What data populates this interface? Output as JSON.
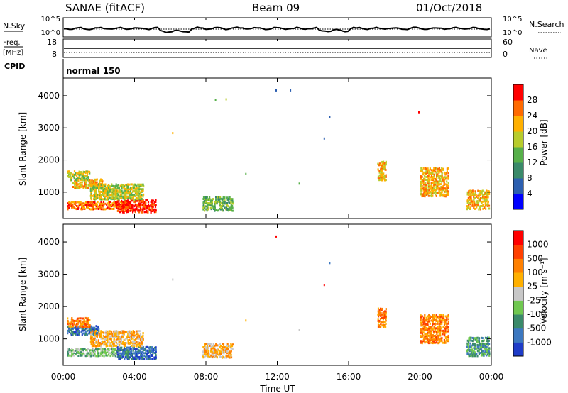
{
  "header": {
    "station": "SANAE (fitACF)",
    "beam": "Beam 09",
    "date": "01/Oct/2018"
  },
  "params": {
    "nsky_label": "N.Sky",
    "nsky_ticks": [
      "10^5",
      "10^0"
    ],
    "nsearch_label": "N.Search",
    "nsearch_ticks": [
      "10^5",
      "10^0"
    ],
    "freq_label_1": "Freq.",
    "freq_label_2": "[MHz]",
    "freq_ticks": [
      "18",
      "8"
    ],
    "nave_label": "Nave",
    "nave_ticks": [
      "60",
      "0"
    ],
    "cpid_label": "CPID",
    "cpid_value": "normal 150"
  },
  "colors": {
    "power": [
      "#0000ff",
      "#2c5fb0",
      "#3a8a6a",
      "#57b04a",
      "#b8cc2c",
      "#ffb000",
      "#ff6a00",
      "#ff0000"
    ],
    "velocity": [
      "#1e3cc8",
      "#3c78c0",
      "#3a8a6a",
      "#70c850",
      "#c8c8c8",
      "#ffb000",
      "#ff8000",
      "#ff4000",
      "#ff0000"
    ]
  },
  "chart_data": [
    {
      "type": "heatmap",
      "panel": "power",
      "ylabel": "Slant Range [km]",
      "yticks": [
        "4000",
        "3000",
        "2000",
        "1000"
      ],
      "ylim": [
        180,
        4550
      ],
      "xlim": [
        0,
        24
      ],
      "colorbar_label": "Power [dB]",
      "colorbar_ticks": [
        "28",
        "24",
        "20",
        "16",
        "12",
        "8",
        "4"
      ],
      "clusters": [
        {
          "t0": 0.5,
          "t1": 2.2,
          "r0": 1150,
          "r1": 1450,
          "center": [
            1.3,
            1300
          ],
          "level": 5
        },
        {
          "t0": 0.2,
          "t1": 3.8,
          "r0": 500,
          "r1": 750,
          "center": [
            2.5,
            600
          ],
          "level": 6
        },
        {
          "t0": 3.0,
          "t1": 5.2,
          "r0": 400,
          "r1": 800,
          "center": [
            4.3,
            560
          ],
          "level": 7
        },
        {
          "t0": 1.5,
          "t1": 4.5,
          "r0": 800,
          "r1": 1300,
          "center": [
            3.0,
            950
          ],
          "level": 4
        },
        {
          "t0": 0.2,
          "t1": 1.5,
          "r0": 1400,
          "r1": 1700,
          "center": [
            0.6,
            1550
          ],
          "level": 4
        },
        {
          "t0": 17.6,
          "t1": 18.1,
          "r0": 1400,
          "r1": 2000,
          "center": [
            17.9,
            1700
          ],
          "level": 5
        },
        {
          "t0": 20.0,
          "t1": 21.6,
          "r0": 900,
          "r1": 1800,
          "center": [
            20.8,
            1400
          ],
          "level": 5
        },
        {
          "t0": 22.6,
          "t1": 23.9,
          "r0": 500,
          "r1": 1100,
          "center": [
            23.3,
            700
          ],
          "level": 5
        },
        {
          "t0": 7.8,
          "t1": 9.5,
          "r0": 450,
          "r1": 900,
          "center": [
            8.6,
            600
          ],
          "level": 3
        }
      ],
      "points": [
        {
          "t": 8.5,
          "r": 3900,
          "level": 3
        },
        {
          "t": 9.1,
          "r": 3920,
          "level": 4
        },
        {
          "t": 11.9,
          "r": 4200,
          "level": 1
        },
        {
          "t": 12.7,
          "r": 4200,
          "level": 1
        },
        {
          "t": 14.9,
          "r": 3380,
          "level": 1
        },
        {
          "t": 14.6,
          "r": 2700,
          "level": 1
        },
        {
          "t": 19.9,
          "r": 3520,
          "level": 7
        },
        {
          "t": 6.1,
          "r": 2870,
          "level": 5
        },
        {
          "t": 10.2,
          "r": 1600,
          "level": 3
        },
        {
          "t": 13.2,
          "r": 1300,
          "level": 3
        }
      ]
    },
    {
      "type": "heatmap",
      "panel": "velocity",
      "ylabel": "Slant Range [km]",
      "yticks": [
        "4000",
        "3000",
        "2000",
        "1000"
      ],
      "ylim": [
        180,
        4550
      ],
      "xlim": [
        0,
        24
      ],
      "xticks": [
        "00:00",
        "04:00",
        "08:00",
        "12:00",
        "16:00",
        "20:00",
        "00:00"
      ],
      "xlabel": "Time UT",
      "colorbar_label": "Velocity [m s⁻¹]",
      "colorbar_ticks": [
        "1000",
        "500",
        "100",
        "25",
        "-25",
        "-100",
        "-500",
        "-1000"
      ],
      "clusters": [
        {
          "t0": 0.2,
          "t1": 2.0,
          "r0": 1150,
          "r1": 1450,
          "center": [
            1.0,
            1300
          ],
          "level": 1
        },
        {
          "t0": 0.2,
          "t1": 3.8,
          "r0": 500,
          "r1": 750,
          "center": [
            2.5,
            600
          ],
          "level": 3
        },
        {
          "t0": 3.0,
          "t1": 5.2,
          "r0": 400,
          "r1": 800,
          "center": [
            4.3,
            560
          ],
          "level": 1
        },
        {
          "t0": 1.5,
          "t1": 4.5,
          "r0": 800,
          "r1": 1300,
          "center": [
            3.0,
            950
          ],
          "level": 5
        },
        {
          "t0": 0.2,
          "t1": 1.5,
          "r0": 1400,
          "r1": 1700,
          "center": [
            0.6,
            1550
          ],
          "level": 6
        },
        {
          "t0": 17.6,
          "t1": 18.1,
          "r0": 1400,
          "r1": 2000,
          "center": [
            17.9,
            1700
          ],
          "level": 6
        },
        {
          "t0": 20.0,
          "t1": 21.6,
          "r0": 900,
          "r1": 1800,
          "center": [
            20.8,
            1400
          ],
          "level": 6
        },
        {
          "t0": 22.6,
          "t1": 23.9,
          "r0": 500,
          "r1": 1100,
          "center": [
            23.3,
            700
          ],
          "level": 2
        },
        {
          "t0": 7.8,
          "t1": 9.5,
          "r0": 450,
          "r1": 900,
          "center": [
            8.6,
            600
          ],
          "level": 5
        }
      ],
      "points": [
        {
          "t": 11.9,
          "r": 4200,
          "level": 8
        },
        {
          "t": 14.9,
          "r": 3380,
          "level": 1
        },
        {
          "t": 14.6,
          "r": 2700,
          "level": 8
        },
        {
          "t": 6.1,
          "r": 2870,
          "level": 4
        },
        {
          "t": 10.2,
          "r": 1600,
          "level": 5
        },
        {
          "t": 13.2,
          "r": 1300,
          "level": 4
        }
      ]
    }
  ]
}
